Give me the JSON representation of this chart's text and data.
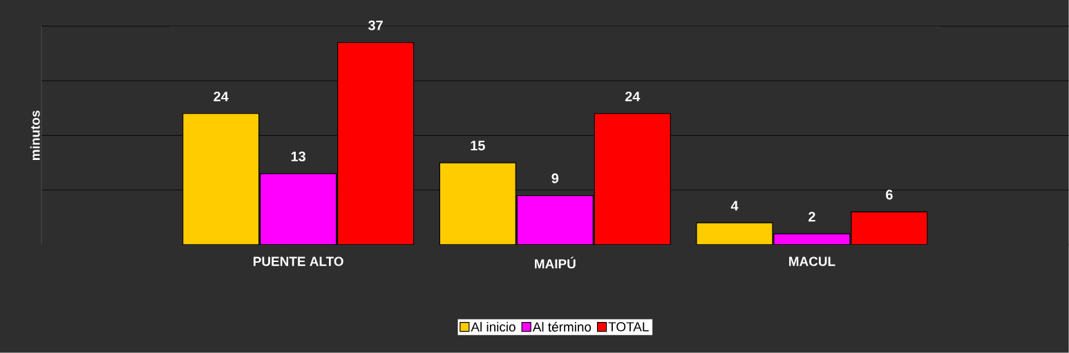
{
  "chart_data": {
    "type": "bar",
    "ylabel": "minutos",
    "categories": [
      "PUENTE ALTO",
      "MAIPÚ",
      "MACUL"
    ],
    "series": [
      {
        "name": "Al inicio",
        "color": "#ffcc00",
        "values": [
          24,
          15,
          4
        ]
      },
      {
        "name": "Al término",
        "color": "#ff00ff",
        "values": [
          13,
          9,
          2
        ]
      },
      {
        "name": "TOTAL",
        "color": "#ff0000",
        "values": [
          37,
          24,
          6
        ]
      }
    ],
    "ylim": [
      0,
      40
    ],
    "yticks": [
      {
        "value": 0,
        "label": null
      },
      {
        "value": 10,
        "label": null
      },
      {
        "value": 20,
        "label": null
      },
      {
        "value": 30,
        "label": null
      },
      {
        "value": 40,
        "label": null
      }
    ],
    "tick_labels": "x",
    "grid": "y",
    "data_labels": true,
    "legend": "bottom"
  }
}
